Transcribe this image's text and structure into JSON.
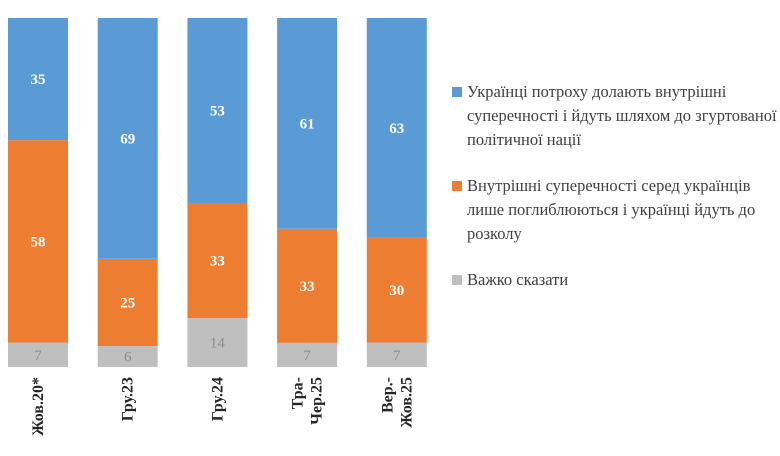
{
  "chart_data": {
    "type": "bar",
    "stacked": true,
    "categories": [
      [
        "Жов.20*"
      ],
      [
        "Гру.23"
      ],
      [
        "Гру.24"
      ],
      [
        "Тра-",
        "Чер.25"
      ],
      [
        "Вер.-",
        "Жов.25"
      ]
    ],
    "series": [
      {
        "name": "Українці потроху долають внутрішні суперечності і йдуть шляхом до згуртованої політичної нації",
        "color": "#5b9bd5",
        "label_color": "#ffffff",
        "values": [
          35,
          69,
          53,
          61,
          63
        ]
      },
      {
        "name": "Внутрішні суперечності серед українців лише поглиблюються і українці йдуть до розколу",
        "color": "#ed7d31",
        "label_color": "#ffffff",
        "values": [
          58,
          25,
          33,
          33,
          30
        ]
      },
      {
        "name": "Важко сказати",
        "color": "#bfbfbf",
        "label_color": "#8c8c8c",
        "values": [
          7,
          6,
          14,
          7,
          7
        ]
      }
    ],
    "ylim": [
      0,
      100
    ],
    "grid": false,
    "legend_position": "right",
    "title": "",
    "xlabel": "",
    "ylabel": ""
  }
}
